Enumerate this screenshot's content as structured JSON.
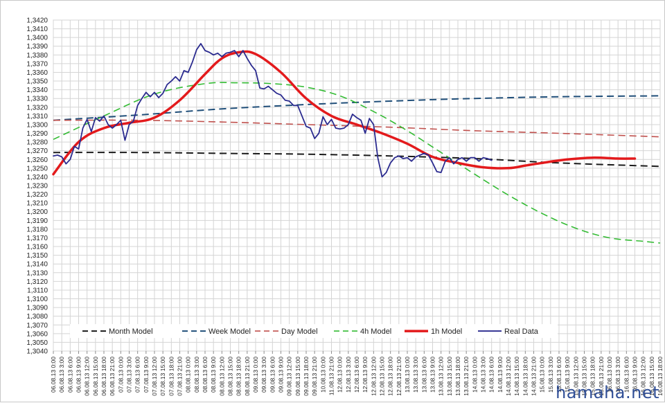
{
  "chart_data": {
    "type": "line",
    "title": "",
    "xlabel": "",
    "ylabel": "",
    "ylim": [
      1.304,
      1.342
    ],
    "ystep": 0.001,
    "grid": true,
    "legend_position": "bottom-inside",
    "x_categories": [
      "06.08.13 0:00",
      "06.08.13 3:00",
      "06.08.13 6:00",
      "06.08.13 9:00",
      "06.08.13 12:00",
      "06.08.13 15:00",
      "06.08.13 18:00",
      "06.08.13 21:00",
      "07.08.13 0:00",
      "07.08.13 3:00",
      "07.08.13 6:00",
      "07.08.13 9:00",
      "07.08.13 12:00",
      "07.08.13 15:00",
      "07.08.13 18:00",
      "07.08.13 21:00",
      "08.08.13 0:00",
      "08.08.13 3:00",
      "08.08.13 6:00",
      "08.08.13 9:00",
      "08.08.13 12:00",
      "08.08.13 15:00",
      "08.08.13 18:00",
      "08.08.13 21:00",
      "09.08.13 0:00",
      "09.08.13 3:00",
      "09.08.13 6:00",
      "09.08.13 9:00",
      "09.08.13 12:00",
      "09.08.13 15:00",
      "09.08.13 18:00",
      "09.08.13 21:00",
      "10.08.13 0:00",
      "11.08.13 21:00",
      "12.08.13 0:00",
      "12.08.13 3:00",
      "12.08.13 6:00",
      "12.08.13 9:00",
      "12.08.13 12:00",
      "12.08.13 15:00",
      "12.08.13 18:00",
      "12.08.13 21:00",
      "13.08.13 0:00",
      "13.08.13 3:00",
      "13.08.13 6:00",
      "13.08.13 9:00",
      "13.08.13 12:00",
      "13.08.13 15:00",
      "13.08.13 18:00",
      "13.08.13 21:00",
      "14.08.13 0:00",
      "14.08.13 3:00",
      "14.08.13 6:00",
      "14.08.13 9:00",
      "14.08.13 12:00",
      "14.08.13 15:00",
      "14.08.13 18:00",
      "14.08.13 21:00",
      "15.08.13 0:00",
      "15.08.13 3:00",
      "15.08.13 6:00",
      "15.08.13 9:00",
      "15.08.13 12:00",
      "15.08.13 15:00",
      "15.08.13 18:00",
      "15.08.13 21:00",
      "16.08.13 0:00",
      "16.08.13 3:00",
      "16.08.13 6:00",
      "16.08.13 9:00",
      "16.08.13 12:00",
      "16.08.13 15:00",
      "16.08.13 18:00"
    ],
    "series": [
      {
        "name": "Month Model",
        "color": "#1a1a1a",
        "dash": "10,6",
        "width": 2,
        "x": [
          0,
          10,
          20,
          30,
          40,
          50,
          60,
          72
        ],
        "y": [
          1.3268,
          1.3268,
          1.3267,
          1.3266,
          1.3264,
          1.3261,
          1.3256,
          1.3252
        ]
      },
      {
        "name": "Week Model",
        "color": "#1f4e79",
        "dash": "10,6",
        "width": 2,
        "x": [
          0,
          10,
          20,
          30,
          40,
          50,
          60,
          72
        ],
        "y": [
          1.3305,
          1.3311,
          1.3318,
          1.3323,
          1.3327,
          1.333,
          1.3332,
          1.3333
        ]
      },
      {
        "name": "Day Model",
        "color": "#c0504d",
        "dash": "10,6",
        "width": 1.6,
        "x": [
          0,
          10,
          20,
          30,
          40,
          50,
          60,
          72
        ],
        "y": [
          1.3305,
          1.3305,
          1.3303,
          1.33,
          1.3297,
          1.3293,
          1.329,
          1.3286
        ]
      },
      {
        "name": "4h Model",
        "color": "#33bb33",
        "dash": "10,6",
        "width": 1.6,
        "x": [
          0,
          6,
          12,
          18,
          22,
          26,
          30,
          34,
          38,
          42,
          46,
          50,
          54,
          58,
          62,
          66,
          70,
          72
        ],
        "y": [
          1.3283,
          1.331,
          1.3335,
          1.3347,
          1.3348,
          1.3347,
          1.3343,
          1.3333,
          1.3315,
          1.3293,
          1.3268,
          1.3243,
          1.3219,
          1.3198,
          1.3181,
          1.317,
          1.3166,
          1.3164
        ]
      },
      {
        "name": "1h Model",
        "color": "#e31a1c",
        "dash": "",
        "width": 3.5,
        "x": [
          0,
          3,
          6,
          9,
          12,
          15,
          18,
          20,
          22,
          24,
          27,
          30,
          33,
          36,
          39,
          42,
          45,
          48,
          51,
          54,
          56,
          58,
          61,
          64,
          67,
          69
        ],
        "y": [
          1.3243,
          1.328,
          1.3296,
          1.3302,
          1.3308,
          1.3328,
          1.3358,
          1.3376,
          1.3383,
          1.3381,
          1.336,
          1.333,
          1.331,
          1.33,
          1.329,
          1.3278,
          1.3263,
          1.3256,
          1.3251,
          1.325,
          1.3253,
          1.3256,
          1.326,
          1.3262,
          1.3261,
          1.3261
        ]
      },
      {
        "name": "Real Data",
        "color": "#2b2b8f",
        "dash": "",
        "width": 1.8,
        "x": [
          0,
          0.5,
          1,
          1.5,
          2,
          2.5,
          3,
          3.5,
          4,
          4.5,
          5,
          5.5,
          6,
          6.5,
          7,
          7.5,
          8,
          8.5,
          9,
          9.5,
          10,
          10.5,
          11,
          11.5,
          12,
          12.5,
          13,
          13.5,
          14,
          14.5,
          15,
          15.5,
          16,
          16.5,
          17,
          17.5,
          18,
          18.5,
          19,
          19.5,
          20,
          20.5,
          21,
          21.5,
          22,
          22.5,
          23,
          23.5,
          24,
          24.5,
          25,
          25.5,
          26,
          26.5,
          27,
          27.5,
          28,
          28.5,
          29,
          29.5,
          30,
          30.5,
          31,
          31.5,
          32,
          32.5,
          33,
          33.5,
          34,
          34.5,
          35,
          35.5,
          36,
          36.5,
          37,
          37.5,
          38,
          38.5,
          39,
          39.5,
          40,
          40.5,
          41,
          41.5,
          42,
          42.5,
          43,
          43.5,
          44,
          44.5,
          45,
          45.5,
          46,
          46.5,
          47,
          47.5,
          48,
          48.5,
          49,
          49.5,
          50,
          50.5,
          51,
          51.5,
          52
        ],
        "y": [
          1.3264,
          1.3265,
          1.3263,
          1.3255,
          1.326,
          1.3275,
          1.3272,
          1.3296,
          1.3306,
          1.3292,
          1.3308,
          1.3304,
          1.331,
          1.33,
          1.3296,
          1.33,
          1.3305,
          1.3282,
          1.33,
          1.3304,
          1.3322,
          1.333,
          1.3337,
          1.3332,
          1.3337,
          1.3331,
          1.3336,
          1.3346,
          1.335,
          1.3355,
          1.335,
          1.3362,
          1.336,
          1.3372,
          1.3386,
          1.3393,
          1.3385,
          1.3383,
          1.338,
          1.3382,
          1.3378,
          1.3382,
          1.3383,
          1.3385,
          1.3378,
          1.3385,
          1.3376,
          1.3368,
          1.3362,
          1.3342,
          1.3341,
          1.3344,
          1.334,
          1.3336,
          1.3334,
          1.3328,
          1.3327,
          1.3322,
          1.3322,
          1.331,
          1.3298,
          1.3296,
          1.3284,
          1.329,
          1.3309,
          1.33,
          1.3306,
          1.3296,
          1.3295,
          1.3296,
          1.33,
          1.3312,
          1.3308,
          1.3305,
          1.329,
          1.3307,
          1.33,
          1.3262,
          1.324,
          1.3245,
          1.3256,
          1.3262,
          1.3264,
          1.3261,
          1.3262,
          1.3258,
          1.3263,
          1.3265,
          1.3267,
          1.3265,
          1.3256,
          1.3246,
          1.3245,
          1.3258,
          1.3262,
          1.3255,
          1.326,
          1.3262,
          1.3258,
          1.3262,
          1.3262,
          1.3258,
          1.3262,
          1.3261,
          1.3259
        ]
      }
    ]
  },
  "legend": {
    "items": [
      "Month Model",
      "Week Model",
      "Day Model",
      "4h Model",
      "1h Model",
      "Real Data"
    ]
  },
  "watermark": "hamaha.net"
}
